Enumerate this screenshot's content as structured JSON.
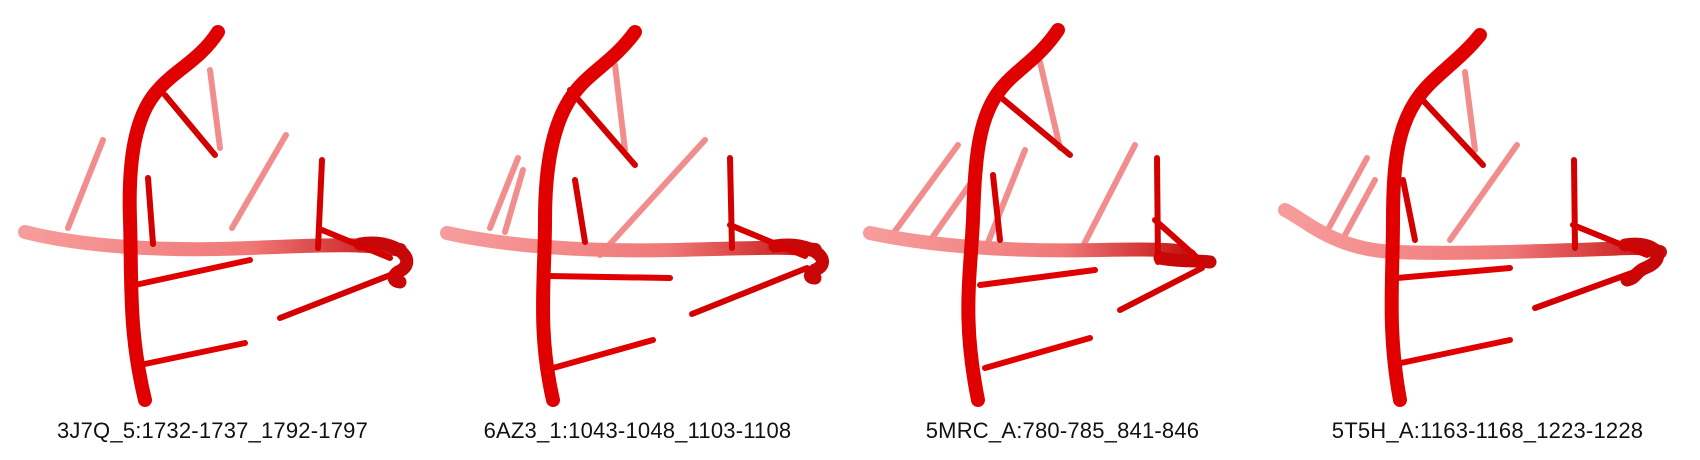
{
  "colors": {
    "structure": "#e00000",
    "structure_dark": "#a80000",
    "structure_faded": "#f06a6a",
    "background": "#ffffff",
    "caption_text": "#111111"
  },
  "panels": [
    {
      "caption": "3J7Q_5:1732-1737_1792-1797"
    },
    {
      "caption": "6AZ3_1:1043-1048_1103-1108"
    },
    {
      "caption": "5MRC_A:780-785_841-846"
    },
    {
      "caption": "5T5H_A:1163-1168_1223-1228"
    }
  ]
}
